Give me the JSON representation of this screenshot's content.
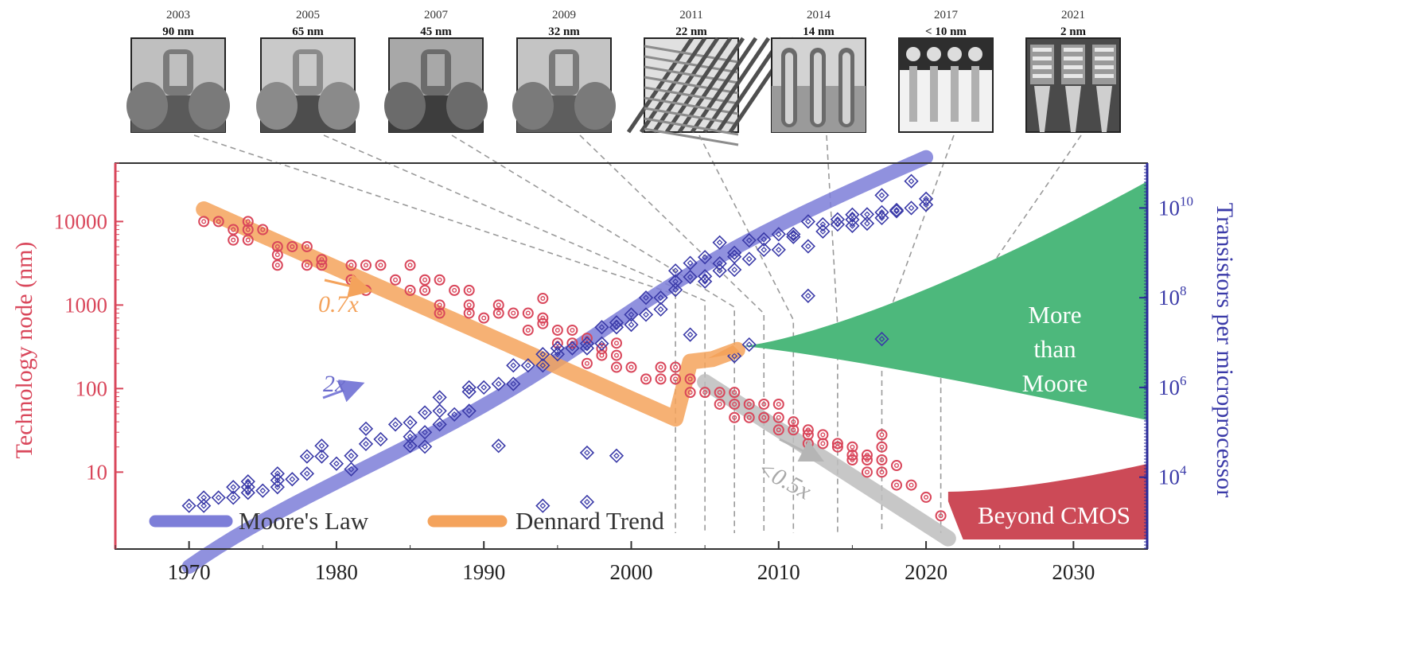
{
  "chart_data": {
    "type": "scatter",
    "nodes": [
      {
        "year": "2003",
        "node": "90 nm",
        "year_num": 2003
      },
      {
        "year": "2005",
        "node": "65 nm",
        "year_num": 2005
      },
      {
        "year": "2007",
        "node": "45 nm",
        "year_num": 2007
      },
      {
        "year": "2009",
        "node": "32 nm",
        "year_num": 2009
      },
      {
        "year": "2011",
        "node": "22 nm",
        "year_num": 2011
      },
      {
        "year": "2014",
        "node": "14 nm",
        "year_num": 2014
      },
      {
        "year": "2017",
        "node": "< 10 nm",
        "year_num": 2017
      },
      {
        "year": "2021",
        "node": "2 nm",
        "year_num": 2021
      }
    ],
    "x_axis": {
      "range": [
        1965,
        2035
      ],
      "ticks": [
        "1970",
        "1980",
        "1990",
        "2000",
        "2010",
        "2020",
        "2030"
      ]
    },
    "y_left": {
      "label": "Technology node (nm)",
      "scale": "log",
      "range": [
        1.2,
        50000
      ],
      "ticks": [
        "10",
        "100",
        "1000",
        "10000"
      ]
    },
    "y_right": {
      "label": "Transistors per microprocessor",
      "scale": "log",
      "range": [
        250,
        100000000000.0
      ],
      "ticks": [
        "10",
        "10",
        "10",
        "10"
      ],
      "tick_exponents": [
        "4",
        "6",
        "8",
        "10"
      ]
    },
    "legend": [
      {
        "label": "Moore's Law",
        "color": "#7d7ed8"
      },
      {
        "label": "Dennard Trend",
        "color": "#f4a35c"
      }
    ],
    "annotations": {
      "dennard_rate": "0.7x",
      "moore_rate": "2x",
      "post_dennard_rate": "<0.5x"
    },
    "regions": {
      "more_than_moore": "More\nthan\nMoore",
      "beyond_cmos": "Beyond CMOS"
    },
    "colors": {
      "node_series": "#d9475b",
      "transistor_series": "#3a3aa8",
      "moore_band": "#7d7ed8",
      "dennard_band": "#f4a35c",
      "post_dennard_band": "#bdbdbd",
      "more_than_moore": "#4db87c",
      "beyond_cmos": "#cc4a57"
    },
    "node_points": [
      [
        1971,
        10000
      ],
      [
        1972,
        10000
      ],
      [
        1973,
        8000
      ],
      [
        1973,
        6000
      ],
      [
        1974,
        10000
      ],
      [
        1974,
        8000
      ],
      [
        1974,
        6000
      ],
      [
        1975,
        8000
      ],
      [
        1976,
        5000
      ],
      [
        1976,
        4000
      ],
      [
        1976,
        3000
      ],
      [
        1977,
        5000
      ],
      [
        1978,
        5000
      ],
      [
        1978,
        3000
      ],
      [
        1979,
        3500
      ],
      [
        1979,
        3000
      ],
      [
        1981,
        3000
      ],
      [
        1981,
        2000
      ],
      [
        1982,
        3000
      ],
      [
        1982,
        1500
      ],
      [
        1983,
        3000
      ],
      [
        1984,
        2000
      ],
      [
        1985,
        3000
      ],
      [
        1985,
        1500
      ],
      [
        1986,
        2000
      ],
      [
        1986,
        1500
      ],
      [
        1987,
        2000
      ],
      [
        1987,
        1000
      ],
      [
        1987,
        800
      ],
      [
        1988,
        1500
      ],
      [
        1989,
        1500
      ],
      [
        1989,
        1000
      ],
      [
        1989,
        800
      ],
      [
        1990,
        700
      ],
      [
        1991,
        1000
      ],
      [
        1991,
        800
      ],
      [
        1992,
        800
      ],
      [
        1993,
        800
      ],
      [
        1993,
        500
      ],
      [
        1994,
        1200
      ],
      [
        1994,
        700
      ],
      [
        1994,
        600
      ],
      [
        1995,
        500
      ],
      [
        1995,
        350
      ],
      [
        1996,
        500
      ],
      [
        1996,
        350
      ],
      [
        1997,
        400
      ],
      [
        1997,
        200
      ],
      [
        1998,
        300
      ],
      [
        1998,
        250
      ],
      [
        1999,
        350
      ],
      [
        1999,
        250
      ],
      [
        1999,
        180
      ],
      [
        2000,
        180
      ],
      [
        2001,
        130
      ],
      [
        2002,
        180
      ],
      [
        2002,
        130
      ],
      [
        2003,
        180
      ],
      [
        2003,
        130
      ],
      [
        2004,
        130
      ],
      [
        2004,
        90
      ],
      [
        2005,
        90
      ],
      [
        2006,
        90
      ],
      [
        2006,
        65
      ],
      [
        2007,
        90
      ],
      [
        2007,
        65
      ],
      [
        2007,
        45
      ],
      [
        2008,
        65
      ],
      [
        2008,
        45
      ],
      [
        2009,
        65
      ],
      [
        2009,
        45
      ],
      [
        2010,
        65
      ],
      [
        2010,
        45
      ],
      [
        2010,
        32
      ],
      [
        2011,
        40
      ],
      [
        2011,
        32
      ],
      [
        2012,
        32
      ],
      [
        2012,
        28
      ],
      [
        2012,
        22
      ],
      [
        2013,
        28
      ],
      [
        2013,
        22
      ],
      [
        2014,
        22
      ],
      [
        2014,
        20
      ],
      [
        2015,
        20
      ],
      [
        2015,
        16
      ],
      [
        2015,
        14
      ],
      [
        2016,
        16
      ],
      [
        2016,
        14
      ],
      [
        2016,
        10
      ],
      [
        2017,
        28
      ],
      [
        2017,
        20
      ],
      [
        2017,
        14
      ],
      [
        2017,
        10
      ],
      [
        2018,
        12
      ],
      [
        2018,
        7
      ],
      [
        2019,
        7
      ],
      [
        2020,
        5
      ],
      [
        2021,
        3
      ]
    ],
    "transistor_points": [
      [
        1970,
        2300
      ],
      [
        1971,
        2300
      ],
      [
        1971,
        3500
      ],
      [
        1972,
        3500
      ],
      [
        1973,
        3500
      ],
      [
        1973,
        6000
      ],
      [
        1974,
        4500
      ],
      [
        1974,
        6000
      ],
      [
        1974,
        8000
      ],
      [
        1975,
        5000
      ],
      [
        1976,
        6000
      ],
      [
        1976,
        8500
      ],
      [
        1977,
        9000
      ],
      [
        1978,
        12000
      ],
      [
        1978,
        29000
      ],
      [
        1979,
        29000
      ],
      [
        1979,
        50000
      ],
      [
        1980,
        20000
      ],
      [
        1981,
        30000
      ],
      [
        1982,
        55000
      ],
      [
        1982,
        120000
      ],
      [
        1983,
        70000
      ],
      [
        1984,
        150000
      ],
      [
        1985,
        80000
      ],
      [
        1985,
        165000
      ],
      [
        1986,
        100000
      ],
      [
        1986,
        275000
      ],
      [
        1987,
        150000
      ],
      [
        1987,
        300000
      ],
      [
        1987,
        600000
      ],
      [
        1988,
        250000
      ],
      [
        1989,
        300000
      ],
      [
        1989,
        800000
      ],
      [
        1989,
        1000000
      ],
      [
        1990,
        1000000
      ],
      [
        1991,
        1200000
      ],
      [
        1992,
        1200000
      ],
      [
        1992,
        3100000
      ],
      [
        1993,
        3100000
      ],
      [
        1994,
        3100000
      ],
      [
        1994,
        5500000
      ],
      [
        1995,
        5500000
      ],
      [
        1995,
        7500000
      ],
      [
        1996,
        7500000
      ],
      [
        1997,
        9500000
      ],
      [
        1997,
        7500000
      ],
      [
        1998,
        9500000
      ],
      [
        1998,
        22000000
      ],
      [
        1999,
        22000000
      ],
      [
        1999,
        28000000
      ],
      [
        2000,
        42000000
      ],
      [
        2000,
        25000000
      ],
      [
        2001,
        42000000
      ],
      [
        2001,
        100000000
      ],
      [
        2002,
        55000000
      ],
      [
        2002,
        100000000
      ],
      [
        2003,
        150000000
      ],
      [
        2003,
        230000000
      ],
      [
        2003,
        400000000
      ],
      [
        2004,
        290000000
      ],
      [
        2004,
        592000000
      ],
      [
        2005,
        230000000
      ],
      [
        2005,
        300000000
      ],
      [
        2005,
        800000000
      ],
      [
        2006,
        400000000
      ],
      [
        2006,
        1700000000
      ],
      [
        2006,
        580000000
      ],
      [
        2007,
        820000000
      ],
      [
        2007,
        420000000
      ],
      [
        2007,
        1000000000
      ],
      [
        2008,
        1900000000
      ],
      [
        2008,
        730000000
      ],
      [
        2009,
        1170000000
      ],
      [
        2009,
        2000000000
      ],
      [
        2010,
        1170000000
      ],
      [
        2010,
        2600000000
      ],
      [
        2011,
        2270000000
      ],
      [
        2011,
        2600000000
      ],
      [
        2012,
        1400000000
      ],
      [
        2012,
        5000000000
      ],
      [
        2013,
        3000000000
      ],
      [
        2013,
        4300000000
      ],
      [
        2014,
        5560000000
      ],
      [
        2014,
        4300000000
      ],
      [
        2015,
        5500000000
      ],
      [
        2015,
        4000000000
      ],
      [
        2015,
        7100000000
      ],
      [
        2016,
        7200000000
      ],
      [
        2016,
        4500000000
      ],
      [
        2017,
        8000000000
      ],
      [
        2017,
        19200000000
      ],
      [
        2017,
        6000000000
      ],
      [
        2018,
        8500000000
      ],
      [
        2018,
        9000000000
      ],
      [
        2019,
        39540000000
      ],
      [
        2019,
        10000000000
      ],
      [
        2020,
        16000000000
      ],
      [
        2020,
        11800000000
      ],
      [
        1991,
        50000
      ],
      [
        1994,
        2300
      ],
      [
        1997,
        2800
      ],
      [
        1997,
        35000
      ],
      [
        1999,
        30000
      ],
      [
        1986,
        48000
      ],
      [
        2004,
        15000000
      ],
      [
        2007,
        5000000
      ],
      [
        2008,
        9000000
      ],
      [
        2012,
        110000000
      ],
      [
        2017,
        12000000
      ],
      [
        1985,
        50000
      ],
      [
        1981,
        15000
      ],
      [
        1976,
        12000
      ]
    ]
  }
}
